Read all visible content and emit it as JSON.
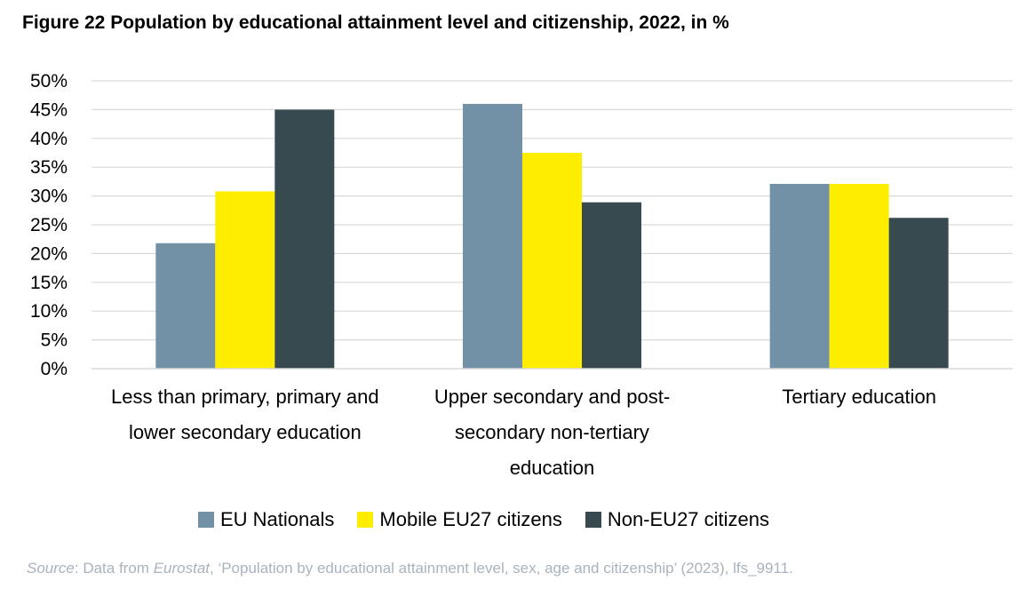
{
  "title": "Figure 22 Population by educational attainment level and citizenship, 2022, in %",
  "chart_data": {
    "type": "bar",
    "title": "Figure 22 Population by educational attainment level and citizenship, 2022, in %",
    "categories": [
      "Less than primary, primary and lower secondary education",
      "Upper secondary and post-secondary non-tertiary education",
      "Tertiary education"
    ],
    "category_lines": [
      [
        "Less than primary, primary and",
        "lower secondary education"
      ],
      [
        "Upper secondary and post-",
        "secondary non-tertiary",
        "education"
      ],
      [
        "Tertiary education"
      ]
    ],
    "series": [
      {
        "name": "EU Nationals",
        "color": "#7291a7",
        "values": [
          21.8,
          46.0,
          32.1
        ]
      },
      {
        "name": "Mobile EU27 citizens",
        "color": "#ffed00",
        "values": [
          30.8,
          37.5,
          32.1
        ]
      },
      {
        "name": "Non-EU27 citizens",
        "color": "#374a50",
        "values": [
          45.0,
          28.9,
          26.2
        ]
      }
    ],
    "ylim": [
      0,
      50
    ],
    "y_ticks": [
      "0%",
      "5%",
      "10%",
      "15%",
      "20%",
      "25%",
      "30%",
      "35%",
      "40%",
      "45%",
      "50%"
    ],
    "y_tick_values": [
      0,
      5,
      10,
      15,
      20,
      25,
      30,
      35,
      40,
      45,
      50
    ],
    "xlabel": "",
    "ylabel": "",
    "grid": true,
    "legend_position": "bottom"
  },
  "source": {
    "label": "Source",
    "text1": ": Data from ",
    "publisher": "Eurostat",
    "text2": ", ‘Population by educational attainment level, sex, age and citizenship’ (2023), lfs_9911."
  }
}
